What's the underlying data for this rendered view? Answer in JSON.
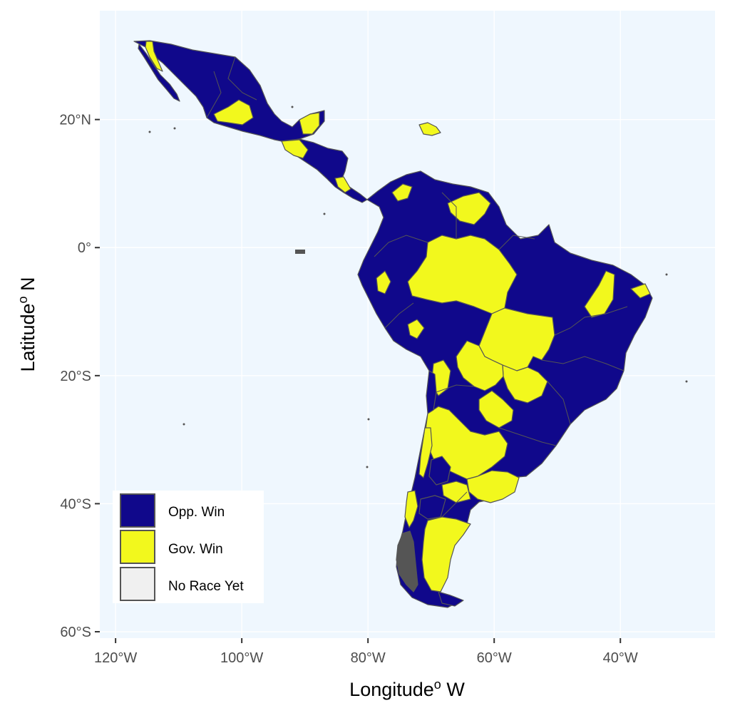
{
  "axes": {
    "x_title": "Longitude",
    "x_title_sup": "o",
    "x_title_suffix": " W",
    "y_title": "Latitude",
    "y_title_sup": "o",
    "y_title_suffix": " N",
    "x_ticks": [
      {
        "value": -120,
        "label": "120°W"
      },
      {
        "value": -100,
        "label": "100°W"
      },
      {
        "value": -80,
        "label": "80°W"
      },
      {
        "value": -60,
        "label": "60°W"
      },
      {
        "value": -40,
        "label": "40°W"
      }
    ],
    "y_ticks": [
      {
        "value": 20,
        "label": "20°N"
      },
      {
        "value": 0,
        "label": "0°"
      },
      {
        "value": -20,
        "label": "20°S"
      },
      {
        "value": -40,
        "label": "40°S"
      },
      {
        "value": -60,
        "label": "60°S"
      }
    ],
    "xlim": [
      -122.5,
      -25
    ],
    "ylim": [
      -61,
      37
    ]
  },
  "colors": {
    "panel_background": "#eff7fe",
    "gridline": "#ffffff",
    "opp_win": "#10088b",
    "gov_win": "#f2f81d",
    "no_race": "#f0f0f0",
    "border": "#555555"
  },
  "legend": {
    "placement": "bottom-left inside",
    "items": [
      {
        "key": "opp",
        "label": "Opp. Win",
        "color": "#10088b"
      },
      {
        "key": "gov",
        "label": "Gov. Win",
        "color": "#f2f81d"
      },
      {
        "key": "none",
        "label": "No Race Yet",
        "color": "#f0f0f0"
      }
    ]
  }
}
